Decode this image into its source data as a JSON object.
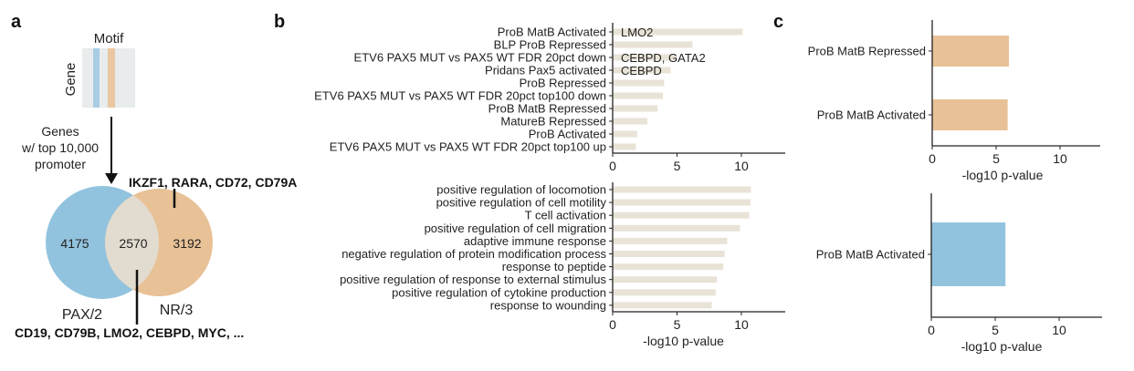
{
  "panels": {
    "a": "a",
    "b": "b",
    "c": "c"
  },
  "panel_a": {
    "motif_label": "Motif",
    "gene_label": "Gene",
    "arrow_text": [
      "Genes",
      "w/ top 10,000",
      "promoter"
    ],
    "venn": {
      "left_label": "PAX/2",
      "right_label": "NR/3",
      "left_only": "4175",
      "overlap": "2570",
      "right_only": "3192",
      "right_genes": "IKZF1, RARA, CD72, CD79A",
      "overlap_genes": "CD19, CD79B, LMO2, CEBPD, MYC, ...",
      "colors": {
        "left": "#92c3de",
        "right": "#e8c196",
        "overlap": "#e2dbcf"
      }
    }
  },
  "chart_data": [
    {
      "type": "bar",
      "orientation": "horizontal",
      "panel": "b-top",
      "categories": [
        "ProB MatB Activated",
        "BLP ProB Repressed",
        "ETV6 PAX5 MUT vs PAX5 WT FDR 20pct down",
        "Pridans Pax5 activated",
        "ProB Repressed",
        "ETV6 PAX5 MUT vs PAX5 WT FDR 20pct top100 down",
        "ProB MatB Repressed",
        "MatureB Repressed",
        "ProB Activated",
        "ETV6 PAX5 MUT vs PAX5 WT FDR 20pct top100 up"
      ],
      "values": [
        10.1,
        6.2,
        5.0,
        4.5,
        4.0,
        3.9,
        3.5,
        2.7,
        1.9,
        1.8
      ],
      "annotations": [
        "LMO2",
        "",
        "CEBPD, GATA2",
        "CEBPD",
        "",
        "",
        "",
        "",
        "",
        ""
      ],
      "xticks": [
        0,
        5,
        10
      ],
      "xlim": [
        0,
        13.5
      ],
      "xlabel": "",
      "color": "#e9e3d7"
    },
    {
      "type": "bar",
      "orientation": "horizontal",
      "panel": "b-bottom",
      "categories": [
        "positive regulation of locomotion",
        "positive regulation of cell motility",
        "T cell activation",
        "positive regulation of cell migration",
        "adaptive immune response",
        "negative regulation of protein modification process",
        "response to peptide",
        "positive regulation of response to external stimulus",
        "positive regulation of cytokine production",
        "response to wounding"
      ],
      "values": [
        10.75,
        10.7,
        10.6,
        9.9,
        8.9,
        8.7,
        8.6,
        8.1,
        8.0,
        7.7
      ],
      "xticks": [
        0,
        5,
        10
      ],
      "xlim": [
        0,
        13.5
      ],
      "xlabel": "-log10 p-value",
      "color": "#e9e3d7"
    },
    {
      "type": "bar",
      "orientation": "horizontal",
      "panel": "c-top",
      "categories": [
        "ProB MatB Repressed",
        "ProB MatB Activated"
      ],
      "values": [
        6.0,
        5.9
      ],
      "xticks": [
        0,
        5,
        10
      ],
      "xlim": [
        0,
        13
      ],
      "xlabel": "-log10 p-value",
      "color": "#e8c196"
    },
    {
      "type": "bar",
      "orientation": "horizontal",
      "panel": "c-bottom",
      "categories": [
        "ProB MatB Activated"
      ],
      "values": [
        5.8
      ],
      "xticks": [
        0,
        5,
        10
      ],
      "xlim": [
        0,
        13
      ],
      "xlabel": "-log10 p-value",
      "color": "#92c3de"
    }
  ]
}
